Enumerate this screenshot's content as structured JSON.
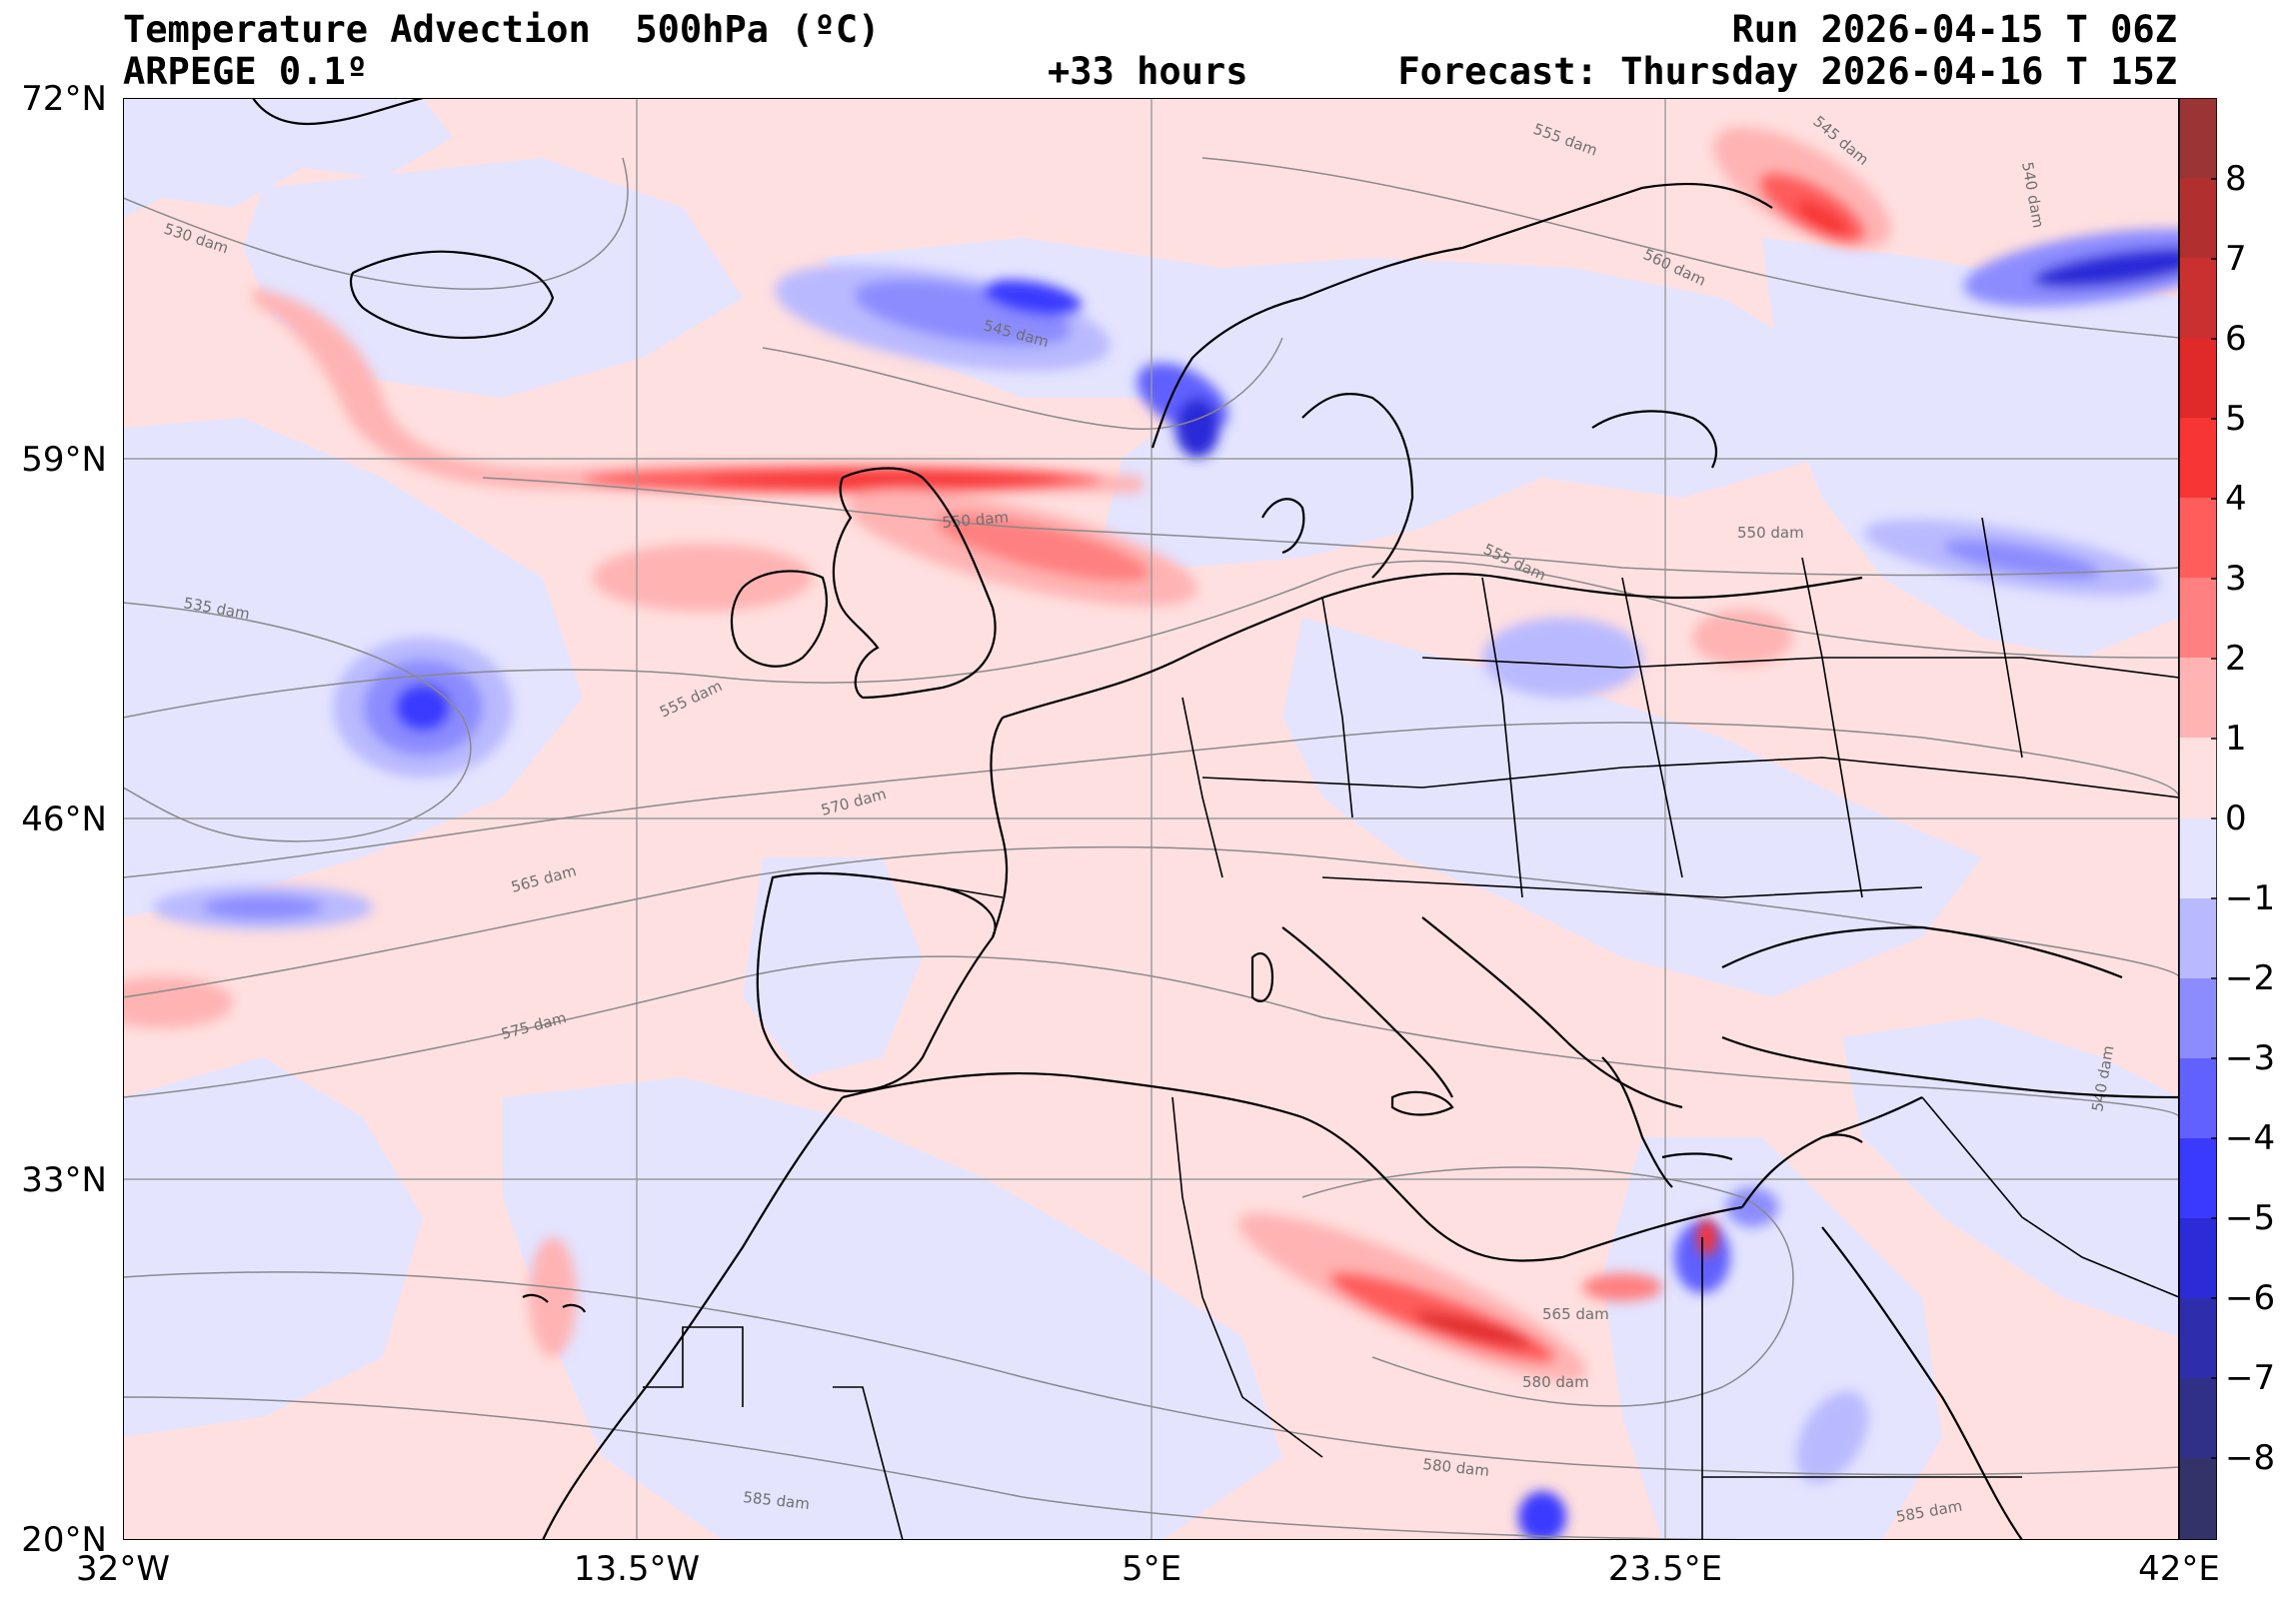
{
  "header": {
    "title": "Temperature Advection  500hPa (ºC)",
    "model": "ARPEGE 0.1º",
    "lead": "+33 hours",
    "run": "Run 2026-04-15 T 06Z",
    "forecast": "Forecast: Thursday 2026-04-16 T 15Z"
  },
  "axes": {
    "lat_labels": [
      "72°N",
      "59°N",
      "46°N",
      "33°N",
      "20°N"
    ],
    "lon_labels": [
      "32°W",
      "13.5°W",
      "5°E",
      "23.5°E",
      "42°E"
    ]
  },
  "colorbar": {
    "labels": [
      "8",
      "7",
      "6",
      "5",
      "4",
      "3",
      "2",
      "1",
      "0",
      "−1",
      "−2",
      "−3",
      "−4",
      "−5",
      "−6",
      "−7",
      "−8"
    ],
    "colors_positive": [
      "#ffe0e0",
      "#ffb3b3",
      "#ff8080",
      "#ff5c5c",
      "#f73535",
      "#e02a2a",
      "#c93030",
      "#b22f2f",
      "#9b3434"
    ],
    "colors_negative": [
      "#e4e4ff",
      "#b9b9ff",
      "#8c8cff",
      "#6161ff",
      "#3a3aff",
      "#2b2bd8",
      "#2e2eac",
      "#303088",
      "#33336a"
    ]
  },
  "contour_labels": [
    "530 dam",
    "535 dam",
    "545 dam",
    "550 dam",
    "555 dam",
    "560 dam",
    "565 dam",
    "570 dam",
    "575 dam",
    "580 dam",
    "585 dam",
    "540 dam",
    "545 dam",
    "550 dam",
    "555 dam",
    "555 dam",
    "565 dam",
    "580 dam",
    "585 dam",
    "540 dam"
  ],
  "colors": {
    "map_base_pos": "#ffe0e0",
    "map_base_neg": "#e4e4ff",
    "coast": "#000000",
    "grid": "#9a9a9a",
    "isohypse": "#8a8a8a"
  }
}
